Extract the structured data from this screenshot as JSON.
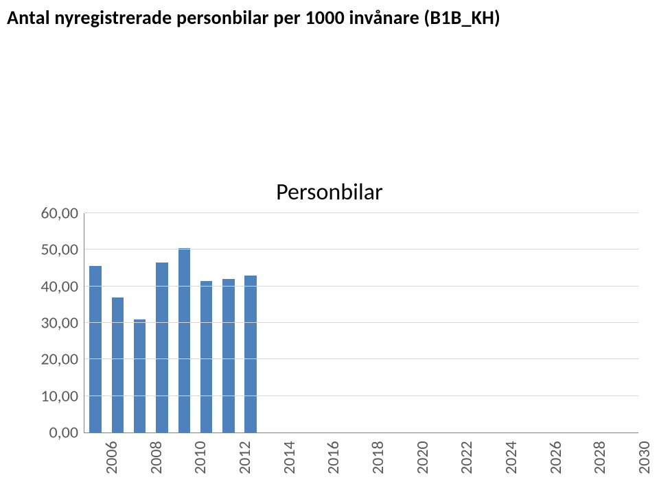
{
  "page_title": "Antal nyregistrerade personbilar per 1000 invånare (B1B_KH)",
  "chart": {
    "type": "bar",
    "title": "Personbilar",
    "title_fontsize": 34,
    "label_fontsize": 24,
    "label_color": "#595959",
    "background_color": "#ffffff",
    "grid_color": "#d9d9d9",
    "axis_color": "#808080",
    "bar_color": "#4f81bd",
    "bar_width_ratio": 0.54,
    "ylim": [
      0,
      60
    ],
    "ytick_step": 10,
    "y_ticks": [
      "0,00",
      "10,00",
      "20,00",
      "30,00",
      "40,00",
      "50,00",
      "60,00"
    ],
    "data": [
      {
        "year": 2006,
        "value": 45.5
      },
      {
        "year": 2007,
        "value": 37.0
      },
      {
        "year": 2008,
        "value": 31.0
      },
      {
        "year": 2009,
        "value": 46.5
      },
      {
        "year": 2010,
        "value": 50.5
      },
      {
        "year": 2011,
        "value": 41.5
      },
      {
        "year": 2012,
        "value": 42.0
      },
      {
        "year": 2013,
        "value": 43.0
      }
    ],
    "x_tick_labels": [
      "2006",
      "2008",
      "2010",
      "2012",
      "2014",
      "2016",
      "2018",
      "2020",
      "2022",
      "2024",
      "2026",
      "2028",
      "2030"
    ],
    "x_slots": 25
  }
}
